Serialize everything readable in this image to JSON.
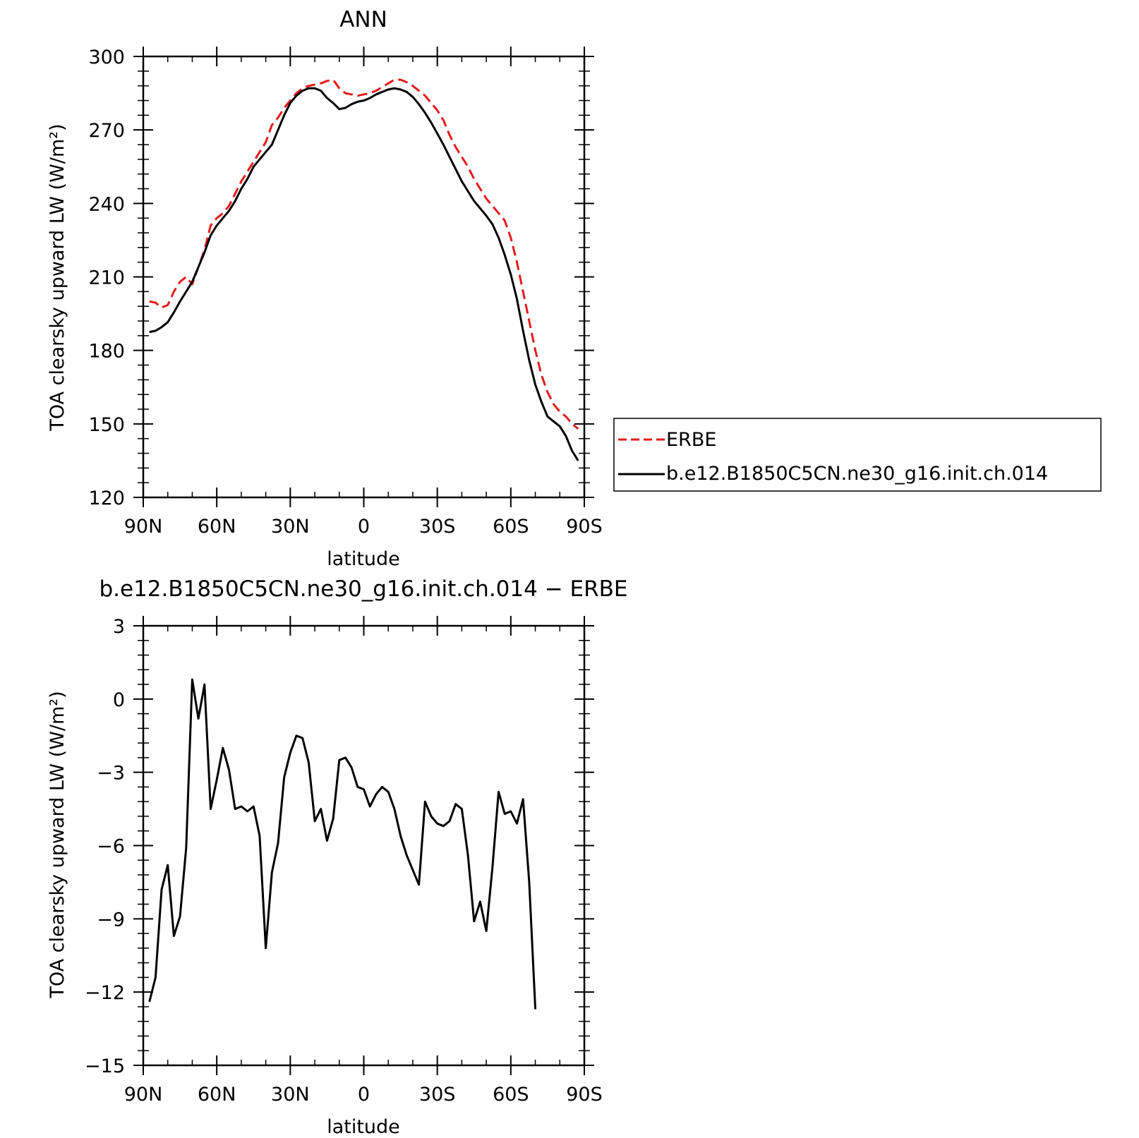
{
  "colors": {
    "erbe": "#e41a1c",
    "model": "#000000",
    "axis": "#000000",
    "background": "#ffffff"
  },
  "chart_data": [
    {
      "type": "line",
      "title": "ANN",
      "xlabel": "latitude",
      "ylabel": "TOA clearsky upward LW (W/m²)",
      "xlim": [
        90,
        -90
      ],
      "ylim": [
        120,
        300
      ],
      "x_ticks": [
        90,
        60,
        30,
        0,
        -30,
        -60,
        -90
      ],
      "x_tick_labels": [
        "90N",
        "60N",
        "30N",
        "0",
        "30S",
        "60S",
        "90S"
      ],
      "y_ticks": [
        120,
        150,
        180,
        210,
        240,
        270,
        300
      ],
      "y_tick_labels": [
        "120",
        "150",
        "180",
        "210",
        "240",
        "270",
        "300"
      ],
      "legend_position": "right",
      "series": [
        {
          "name": "ERBE",
          "style": "dashed",
          "color": "#e41a1c",
          "points": [
            [
              87.5,
              200
            ],
            [
              85,
              199.5
            ],
            [
              82.5,
              197.5
            ],
            [
              80,
              198.5
            ],
            [
              77.5,
              204
            ],
            [
              75,
              208
            ],
            [
              72.5,
              210
            ],
            [
              70,
              207
            ],
            [
              67.5,
              214
            ],
            [
              65,
              221
            ],
            [
              62.5,
              231
            ],
            [
              60,
              234
            ],
            [
              57.5,
              236
            ],
            [
              55,
              239
            ],
            [
              52.5,
              244
            ],
            [
              50,
              249
            ],
            [
              47.5,
              253
            ],
            [
              45,
              257
            ],
            [
              42.5,
              261
            ],
            [
              40,
              265
            ],
            [
              37.5,
              272
            ],
            [
              35,
              275
            ],
            [
              32.5,
              279
            ],
            [
              30,
              282
            ],
            [
              27.5,
              285
            ],
            [
              25,
              287
            ],
            [
              22.5,
              288
            ],
            [
              20,
              288.5
            ],
            [
              17.5,
              289
            ],
            [
              15,
              290
            ],
            [
              12.5,
              290.5
            ],
            [
              10,
              287
            ],
            [
              7.5,
              285
            ],
            [
              5,
              284.5
            ],
            [
              2.5,
              284
            ],
            [
              0,
              284.5
            ],
            [
              -2.5,
              285
            ],
            [
              -5,
              286
            ],
            [
              -7.5,
              287.5
            ],
            [
              -10,
              289
            ],
            [
              -12.5,
              290.5
            ],
            [
              -15,
              290.5
            ],
            [
              -17.5,
              289.5
            ],
            [
              -20,
              288
            ],
            [
              -22.5,
              286
            ],
            [
              -25,
              284
            ],
            [
              -27.5,
              281
            ],
            [
              -30,
              278
            ],
            [
              -32.5,
              274
            ],
            [
              -35,
              268
            ],
            [
              -37.5,
              263
            ],
            [
              -40,
              259
            ],
            [
              -42.5,
              255
            ],
            [
              -45,
              250
            ],
            [
              -47.5,
              246
            ],
            [
              -50,
              242
            ],
            [
              -52.5,
              239
            ],
            [
              -55,
              236
            ],
            [
              -57.5,
              233
            ],
            [
              -60,
              226
            ],
            [
              -62.5,
              216
            ],
            [
              -65,
              204
            ],
            [
              -67.5,
              192
            ],
            [
              -70,
              180
            ],
            [
              -72.5,
              170
            ],
            [
              -75,
              163
            ],
            [
              -77.5,
              158
            ],
            [
              -80,
              155
            ],
            [
              -82.5,
              153
            ],
            [
              -85,
              150
            ],
            [
              -87.5,
              148
            ]
          ]
        },
        {
          "name": "b.e12.B1850C5CN.ne30_g16.init.ch.014",
          "style": "solid",
          "color": "#000000",
          "points": [
            [
              87.5,
              187.5
            ],
            [
              85,
              188
            ],
            [
              82.5,
              189.5
            ],
            [
              80,
              191.5
            ],
            [
              77.5,
              195.5
            ],
            [
              75,
              200
            ],
            [
              72.5,
              204
            ],
            [
              70,
              208
            ],
            [
              67.5,
              214
            ],
            [
              65,
              220
            ],
            [
              62.5,
              227
            ],
            [
              60,
              231
            ],
            [
              57.5,
              234
            ],
            [
              55,
              237
            ],
            [
              52.5,
              241
            ],
            [
              50,
              246
            ],
            [
              47.5,
              250
            ],
            [
              45,
              255
            ],
            [
              42.5,
              258
            ],
            [
              40,
              261
            ],
            [
              37.5,
              264
            ],
            [
              35,
              270
            ],
            [
              32.5,
              276
            ],
            [
              30,
              281
            ],
            [
              27.5,
              284
            ],
            [
              25,
              286
            ],
            [
              22.5,
              287
            ],
            [
              20,
              287
            ],
            [
              17.5,
              286
            ],
            [
              15,
              283
            ],
            [
              12.5,
              281
            ],
            [
              10,
              278.5
            ],
            [
              7.5,
              279
            ],
            [
              5,
              280.5
            ],
            [
              2.5,
              281.5
            ],
            [
              0,
              282
            ],
            [
              -2.5,
              283
            ],
            [
              -5,
              284.5
            ],
            [
              -7.5,
              285.5
            ],
            [
              -10,
              286.5
            ],
            [
              -12.5,
              287
            ],
            [
              -15,
              286.5
            ],
            [
              -17.5,
              285.5
            ],
            [
              -20,
              283.5
            ],
            [
              -22.5,
              280.5
            ],
            [
              -25,
              277
            ],
            [
              -27.5,
              273
            ],
            [
              -30,
              268.5
            ],
            [
              -32.5,
              264
            ],
            [
              -35,
              259
            ],
            [
              -37.5,
              254
            ],
            [
              -40,
              249
            ],
            [
              -42.5,
              245
            ],
            [
              -45,
              241
            ],
            [
              -47.5,
              238
            ],
            [
              -50,
              235
            ],
            [
              -52.5,
              231.5
            ],
            [
              -55,
              226
            ],
            [
              -57.5,
              219
            ],
            [
              -60,
              211
            ],
            [
              -62.5,
              201
            ],
            [
              -65,
              188
            ],
            [
              -67.5,
              176
            ],
            [
              -70,
              166
            ],
            [
              -72.5,
              159
            ],
            [
              -75,
              153
            ],
            [
              -77.5,
              151
            ],
            [
              -80,
              149
            ],
            [
              -82.5,
              145
            ],
            [
              -85,
              139
            ],
            [
              -87.5,
              135
            ]
          ]
        }
      ]
    },
    {
      "type": "line",
      "title": "b.e12.B1850C5CN.ne30_g16.init.ch.014 − ERBE",
      "xlabel": "latitude",
      "ylabel": "TOA clearsky upward LW (W/m²)",
      "xlim": [
        90,
        -90
      ],
      "ylim": [
        -15,
        3
      ],
      "x_ticks": [
        90,
        60,
        30,
        0,
        -30,
        -60,
        -90
      ],
      "x_tick_labels": [
        "90N",
        "60N",
        "30N",
        "0",
        "30S",
        "60S",
        "90S"
      ],
      "y_ticks": [
        -15,
        -12,
        -9,
        -6,
        -3,
        0,
        3
      ],
      "y_tick_labels": [
        "−15",
        "−12",
        "−9",
        "−6",
        "−3",
        "0",
        "3"
      ],
      "series": [
        {
          "name": "",
          "style": "solid",
          "color": "#000000",
          "points": [
            [
              87.5,
              -12.4
            ],
            [
              85,
              -11.4
            ],
            [
              82.5,
              -7.8
            ],
            [
              80,
              -6.8
            ],
            [
              77.5,
              -9.7
            ],
            [
              75,
              -8.9
            ],
            [
              72.5,
              -6.1
            ],
            [
              70,
              0.8
            ],
            [
              67.5,
              -0.8
            ],
            [
              65,
              0.6
            ],
            [
              62.5,
              -4.5
            ],
            [
              60,
              -3.3
            ],
            [
              57.5,
              -2
            ],
            [
              55,
              -2.9
            ],
            [
              52.5,
              -4.5
            ],
            [
              50,
              -4.4
            ],
            [
              47.5,
              -4.6
            ],
            [
              45,
              -4.4
            ],
            [
              42.5,
              -5.6
            ],
            [
              40,
              -10.2
            ],
            [
              37.5,
              -7.1
            ],
            [
              35,
              -5.9
            ],
            [
              32.5,
              -3.2
            ],
            [
              30,
              -2.2
            ],
            [
              27.5,
              -1.5
            ],
            [
              25,
              -1.6
            ],
            [
              22.5,
              -2.6
            ],
            [
              20,
              -5
            ],
            [
              17.5,
              -4.5
            ],
            [
              15,
              -5.8
            ],
            [
              12.5,
              -4.9
            ],
            [
              10,
              -2.5
            ],
            [
              7.5,
              -2.4
            ],
            [
              5,
              -2.8
            ],
            [
              2.5,
              -3.6
            ],
            [
              0,
              -3.7
            ],
            [
              -2.5,
              -4.4
            ],
            [
              -5,
              -3.9
            ],
            [
              -7.5,
              -3.6
            ],
            [
              -10,
              -3.8
            ],
            [
              -12.5,
              -4.5
            ],
            [
              -15,
              -5.6
            ],
            [
              -17.5,
              -6.4
            ],
            [
              -20,
              -7.0
            ],
            [
              -22.5,
              -7.6
            ],
            [
              -25,
              -4.2
            ],
            [
              -27.5,
              -4.8
            ],
            [
              -30,
              -5.1
            ],
            [
              -32.5,
              -5.2
            ],
            [
              -35,
              -5.0
            ],
            [
              -37.5,
              -4.3
            ],
            [
              -40,
              -4.5
            ],
            [
              -42.5,
              -6.4
            ],
            [
              -45,
              -9.1
            ],
            [
              -47.5,
              -8.3
            ],
            [
              -50,
              -9.5
            ],
            [
              -52.5,
              -6.9
            ],
            [
              -55,
              -3.8
            ],
            [
              -57.5,
              -4.7
            ],
            [
              -60,
              -4.6
            ],
            [
              -62.5,
              -5.1
            ],
            [
              -65,
              -4.1
            ],
            [
              -67.5,
              -7.5
            ],
            [
              -70,
              -12.7
            ]
          ]
        }
      ]
    }
  ]
}
